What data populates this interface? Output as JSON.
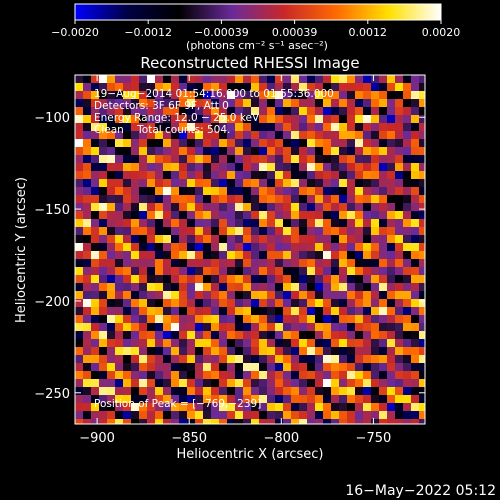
{
  "chart_data": {
    "type": "heatmap",
    "title": "Reconstructed RHESSI Image",
    "xlabel": "Heliocentric X (arcsec)",
    "ylabel": "Heliocentric Y (arcsec)",
    "xlim": [
      -912,
      -722
    ],
    "ylim": [
      -267,
      -77
    ],
    "x_ticks": [
      {
        "value": -900,
        "label": "−900"
      },
      {
        "value": -850,
        "label": "−850"
      },
      {
        "value": -800,
        "label": "−800"
      },
      {
        "value": -750,
        "label": "−750"
      }
    ],
    "y_ticks": [
      {
        "value": -100,
        "label": "−100"
      },
      {
        "value": -150,
        "label": "−150"
      },
      {
        "value": -200,
        "label": "−200"
      },
      {
        "value": -250,
        "label": "−250"
      }
    ],
    "colorbar": {
      "range": [
        -0.002,
        0.002
      ],
      "tick_labels": [
        "−0.0020",
        "−0.0012",
        "−0.00039",
        "0.00039",
        "0.0012",
        "0.0020"
      ],
      "unit_label": "(photons cm⁻² s⁻¹ asec⁻²)",
      "colormap": [
        "#0000ff",
        "#000044",
        "#000000",
        "#6a2a9a",
        "#c82828",
        "#ff6a00",
        "#ffe000",
        "#ffffff"
      ]
    },
    "annotations": [
      "19−Aug−2014 01:54:16.000 to 01:55:36.000",
      "Detectors: 3F 6F 9F, Att 0",
      "Energy Range: 12.0 − 25.0 keV",
      "Clean    Total counts: 504.",
      "Position of Peak = [−769,−239]"
    ],
    "peak": {
      "x": -769,
      "y": -239
    }
  },
  "footer": {
    "date": "16−May−2022 05:12"
  }
}
